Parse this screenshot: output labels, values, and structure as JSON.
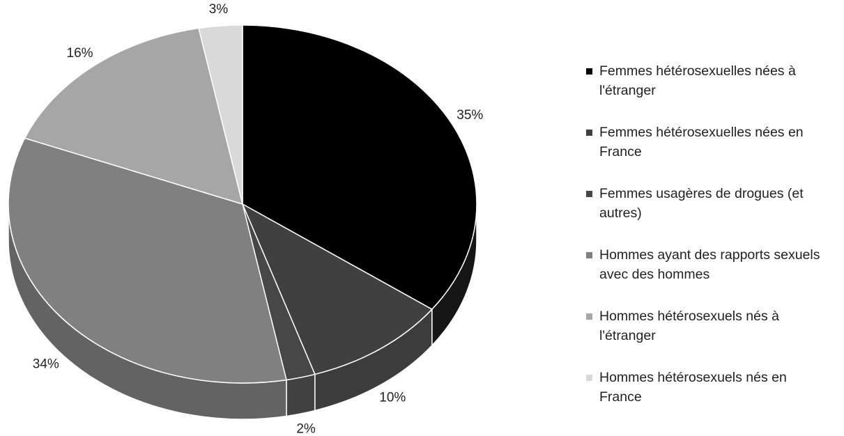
{
  "chart_data": {
    "type": "pie",
    "categories": [
      "Femmes hétérosexuelles nées à l'étranger",
      "Femmes hétérosexuelles nées en France",
      "Femmes usagères de drogues (et autres)",
      "Hommes ayant des rapports sexuels avec des hommes",
      "Hommes hétérosexuels nés à l'étranger",
      "Hommes hétérosexuels nés en France"
    ],
    "values": [
      35,
      10,
      2,
      34,
      16,
      3
    ],
    "value_labels": [
      "35%",
      "10%",
      "2%",
      "34%",
      "16%",
      "3%"
    ],
    "colors": [
      "#000000",
      "#404040",
      "#474747",
      "#808080",
      "#a6a6a6",
      "#d9d9d9"
    ],
    "legend": "right"
  }
}
